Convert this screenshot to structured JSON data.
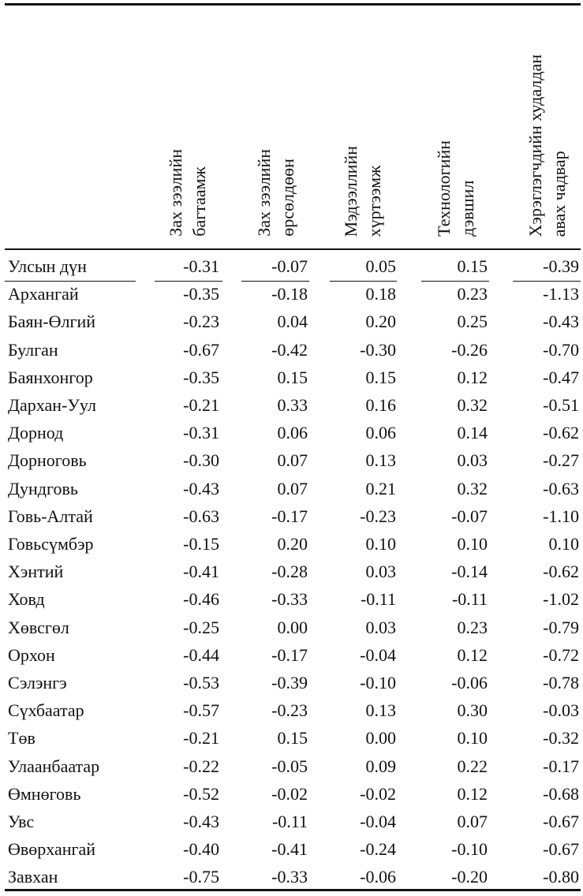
{
  "table": {
    "columns": [
      {
        "line1": "Зах зээлийн",
        "line2": "багтаамж"
      },
      {
        "line1": "Зах зээлийн",
        "line2": "өрсөлдөөн"
      },
      {
        "line1": "Мэдээллийн",
        "line2": "хүртээмж"
      },
      {
        "line1": "Технологийн",
        "line2": "дэвшил"
      },
      {
        "line1": "Хэрэглэгчдийн худалдан",
        "line2": "авах чадвар"
      }
    ],
    "total": {
      "name": "Улсын дүн",
      "values": [
        "-0.31",
        "-0.07",
        "0.05",
        "0.15",
        "-0.39"
      ]
    },
    "rows": [
      {
        "name": "Архангай",
        "values": [
          "-0.35",
          "-0.18",
          "0.18",
          "0.23",
          "-1.13"
        ]
      },
      {
        "name": "Баян-Өлгий",
        "values": [
          "-0.23",
          "0.04",
          "0.20",
          "0.25",
          "-0.43"
        ]
      },
      {
        "name": "Булган",
        "values": [
          "-0.67",
          "-0.42",
          "-0.30",
          "-0.26",
          "-0.70"
        ]
      },
      {
        "name": "Баянхонгор",
        "values": [
          "-0.35",
          "0.15",
          "0.15",
          "0.12",
          "-0.47"
        ]
      },
      {
        "name": "Дархан-Уул",
        "values": [
          "-0.21",
          "0.33",
          "0.16",
          "0.32",
          "-0.51"
        ]
      },
      {
        "name": "Дорнод",
        "values": [
          "-0.31",
          "0.06",
          "0.06",
          "0.14",
          "-0.62"
        ]
      },
      {
        "name": "Дорноговь",
        "values": [
          "-0.30",
          "0.07",
          "0.13",
          "0.03",
          "-0.27"
        ]
      },
      {
        "name": "Дундговь",
        "values": [
          "-0.43",
          "0.07",
          "0.21",
          "0.32",
          "-0.63"
        ]
      },
      {
        "name": "Говь-Алтай",
        "values": [
          "-0.63",
          "-0.17",
          "-0.23",
          "-0.07",
          "-1.10"
        ]
      },
      {
        "name": "Говьсүмбэр",
        "values": [
          "-0.15",
          "0.20",
          "0.10",
          "0.10",
          "0.10"
        ]
      },
      {
        "name": "Хэнтий",
        "values": [
          "-0.41",
          "-0.28",
          "0.03",
          "-0.14",
          "-0.62"
        ]
      },
      {
        "name": "Ховд",
        "values": [
          "-0.46",
          "-0.33",
          "-0.11",
          "-0.11",
          "-1.02"
        ]
      },
      {
        "name": "Хөвсгөл",
        "values": [
          "-0.25",
          "0.00",
          "0.03",
          "0.23",
          "-0.79"
        ]
      },
      {
        "name": "Орхон",
        "values": [
          "-0.44",
          "-0.17",
          "-0.04",
          "0.12",
          "-0.72"
        ]
      },
      {
        "name": "Сэлэнгэ",
        "values": [
          "-0.53",
          "-0.39",
          "-0.10",
          "-0.06",
          "-0.78"
        ]
      },
      {
        "name": "Сүхбаатар",
        "values": [
          "-0.57",
          "-0.23",
          "0.13",
          "0.30",
          "-0.03"
        ]
      },
      {
        "name": "Төв",
        "values": [
          "-0.21",
          "0.15",
          "0.00",
          "0.10",
          "-0.32"
        ]
      },
      {
        "name": "Улаанбаатар",
        "values": [
          "-0.22",
          "-0.05",
          "0.09",
          "0.22",
          "-0.17"
        ]
      },
      {
        "name": "Өмнөговь",
        "values": [
          "-0.52",
          "-0.02",
          "-0.02",
          "0.12",
          "-0.68"
        ]
      },
      {
        "name": "Увс",
        "values": [
          "-0.43",
          "-0.11",
          "-0.04",
          "0.07",
          "-0.67"
        ]
      },
      {
        "name": "Өвөрхангай",
        "values": [
          "-0.40",
          "-0.41",
          "-0.24",
          "-0.10",
          "-0.67"
        ]
      },
      {
        "name": "Завхан",
        "values": [
          "-0.75",
          "-0.33",
          "-0.06",
          "-0.20",
          "-0.80"
        ]
      }
    ]
  }
}
